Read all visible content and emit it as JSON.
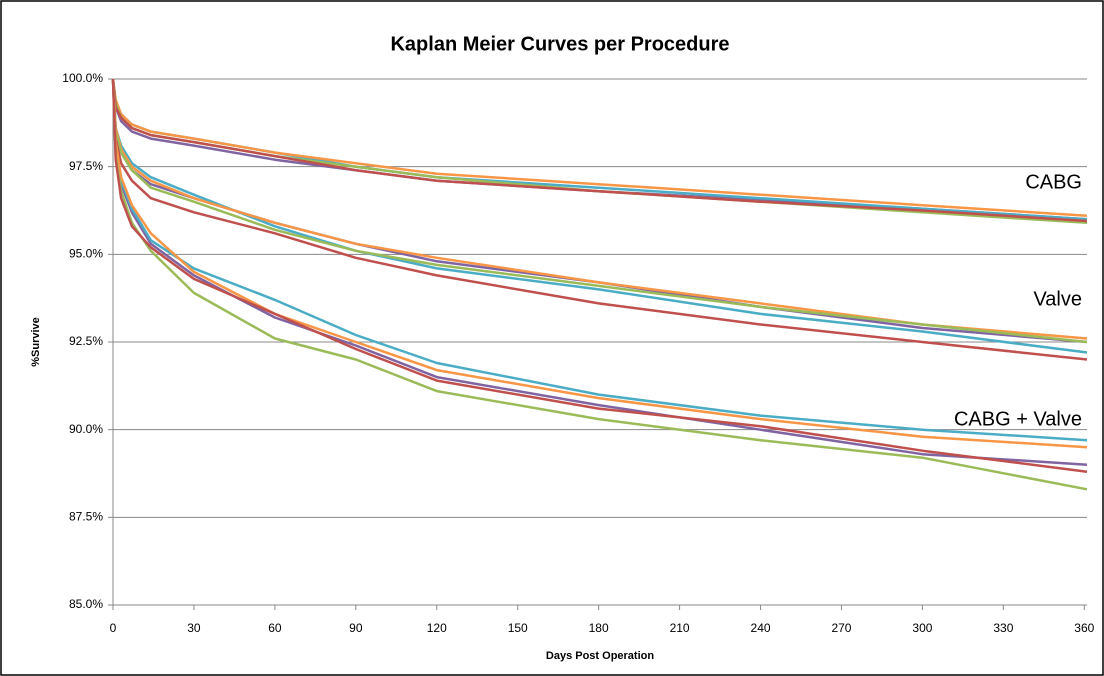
{
  "chart_data": {
    "type": "line",
    "title": "Kaplan Meier Curves per Procedure",
    "x_label": "Days Post Operation",
    "y_label": "%Survive",
    "x": [
      0,
      1,
      3,
      7,
      14,
      30,
      60,
      90,
      120,
      180,
      240,
      300,
      361
    ],
    "xlim": [
      0,
      361
    ],
    "xticks": [
      0,
      30,
      60,
      90,
      120,
      150,
      180,
      210,
      240,
      270,
      300,
      330,
      360
    ],
    "ylim": [
      85,
      100
    ],
    "yticks": [
      {
        "value": 85,
        "label": "85.0%"
      },
      {
        "value": 87.5,
        "label": "87.5%"
      },
      {
        "value": 90,
        "label": "90.0%"
      },
      {
        "value": 92.5,
        "label": "92.5%"
      },
      {
        "value": 95,
        "label": "95.0%"
      },
      {
        "value": 97.5,
        "label": "97.5%"
      },
      {
        "value": 100,
        "label": "100.0%"
      }
    ],
    "grid": true,
    "annotations": [
      "CABG",
      "Valve",
      "CABG + Valve"
    ],
    "series": [
      {
        "color": "#8064a2",
        "values": [
          100,
          99.2,
          98.8,
          98.5,
          98.3,
          98.1,
          97.7,
          97.4,
          97.1,
          96.8,
          96.55,
          96.3,
          96.0
        ]
      },
      {
        "color": "#4bacc6",
        "values": [
          100,
          99.3,
          99.0,
          98.7,
          98.5,
          98.3,
          97.9,
          97.5,
          97.2,
          96.9,
          96.6,
          96.3,
          96.0
        ]
      },
      {
        "color": "#f79646",
        "values": [
          100,
          99.4,
          99.0,
          98.7,
          98.5,
          98.3,
          97.9,
          97.6,
          97.3,
          97.0,
          96.7,
          96.4,
          96.1
        ]
      },
      {
        "color": "#9bbb59",
        "values": [
          100,
          99.3,
          98.9,
          98.6,
          98.4,
          98.2,
          97.8,
          97.5,
          97.2,
          96.8,
          96.5,
          96.2,
          95.9
        ]
      },
      {
        "color": "#c0504d",
        "values": [
          100,
          99.2,
          98.9,
          98.6,
          98.4,
          98.2,
          97.8,
          97.4,
          97.1,
          96.8,
          96.5,
          96.25,
          95.95
        ]
      },
      {
        "color": "#8064a2",
        "values": [
          100,
          98.5,
          97.9,
          97.4,
          97.0,
          96.6,
          95.9,
          95.3,
          94.8,
          94.2,
          93.5,
          92.9,
          92.5
        ]
      },
      {
        "color": "#4bacc6",
        "values": [
          100,
          98.6,
          98.1,
          97.6,
          97.2,
          96.7,
          95.8,
          95.1,
          94.6,
          94.0,
          93.3,
          92.8,
          92.2
        ]
      },
      {
        "color": "#f79646",
        "values": [
          100,
          98.6,
          98.0,
          97.5,
          97.1,
          96.6,
          95.9,
          95.3,
          94.9,
          94.2,
          93.6,
          93.0,
          92.6
        ]
      },
      {
        "color": "#9bbb59",
        "values": [
          100,
          98.5,
          97.9,
          97.4,
          96.9,
          96.5,
          95.7,
          95.1,
          94.7,
          94.1,
          93.5,
          93.0,
          92.5
        ]
      },
      {
        "color": "#c0504d",
        "values": [
          100,
          98.3,
          97.6,
          97.1,
          96.6,
          96.2,
          95.6,
          94.9,
          94.4,
          93.6,
          93.0,
          92.5,
          92.0
        ]
      },
      {
        "color": "#8064a2",
        "values": [
          100,
          98.0,
          97.0,
          96.2,
          95.3,
          94.4,
          93.2,
          92.4,
          91.5,
          90.7,
          90.0,
          89.3,
          89.0
        ]
      },
      {
        "color": "#4bacc6",
        "values": [
          100,
          98.0,
          97.1,
          96.3,
          95.4,
          94.6,
          93.7,
          92.7,
          91.9,
          91.0,
          90.4,
          90.0,
          89.7
        ]
      },
      {
        "color": "#f79646",
        "values": [
          100,
          98.2,
          97.2,
          96.4,
          95.6,
          94.5,
          93.3,
          92.5,
          91.7,
          90.9,
          90.3,
          89.8,
          89.5
        ]
      },
      {
        "color": "#9bbb59",
        "values": [
          100,
          97.8,
          96.8,
          95.9,
          95.1,
          93.9,
          92.6,
          92.0,
          91.1,
          90.3,
          89.7,
          89.2,
          88.3
        ]
      },
      {
        "color": "#c0504d",
        "values": [
          100,
          97.7,
          96.6,
          95.8,
          95.2,
          94.3,
          93.3,
          92.3,
          91.4,
          90.6,
          90.1,
          89.4,
          88.8
        ]
      }
    ]
  }
}
